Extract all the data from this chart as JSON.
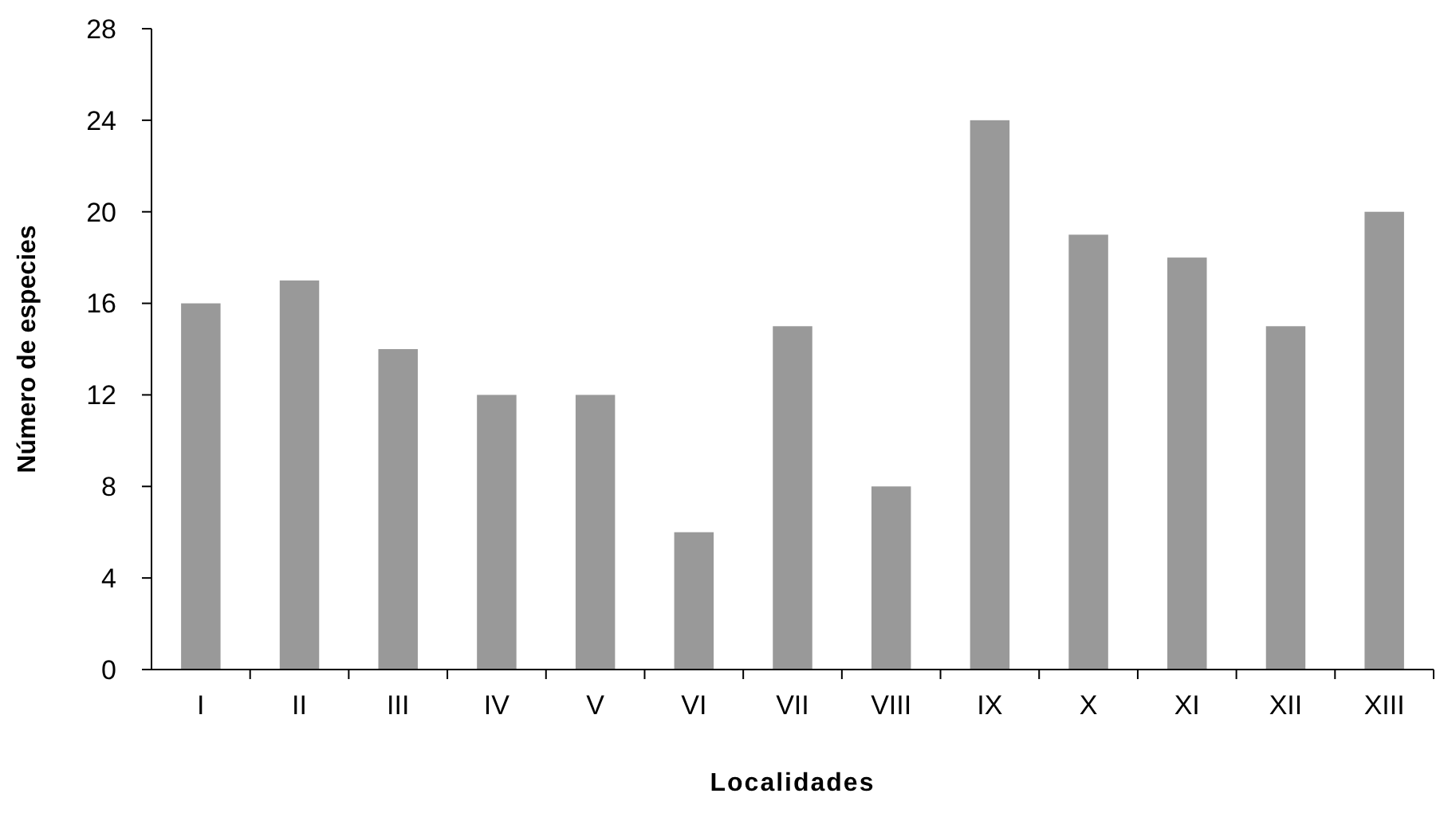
{
  "chart_data": {
    "type": "bar",
    "xlabel": "Localidades",
    "ylabel": "Número de especies",
    "categories": [
      "I",
      "II",
      "III",
      "IV",
      "V",
      "VI",
      "VII",
      "VIII",
      "IX",
      "X",
      "XI",
      "XII",
      "XIII"
    ],
    "values": [
      16,
      17,
      14,
      12,
      12,
      6,
      15,
      8,
      24,
      19,
      18,
      15,
      20
    ],
    "color": "#999999",
    "ylim": [
      0,
      28
    ],
    "yticks": [
      0,
      4,
      8,
      12,
      16,
      20,
      24,
      28
    ],
    "grid": false
  }
}
